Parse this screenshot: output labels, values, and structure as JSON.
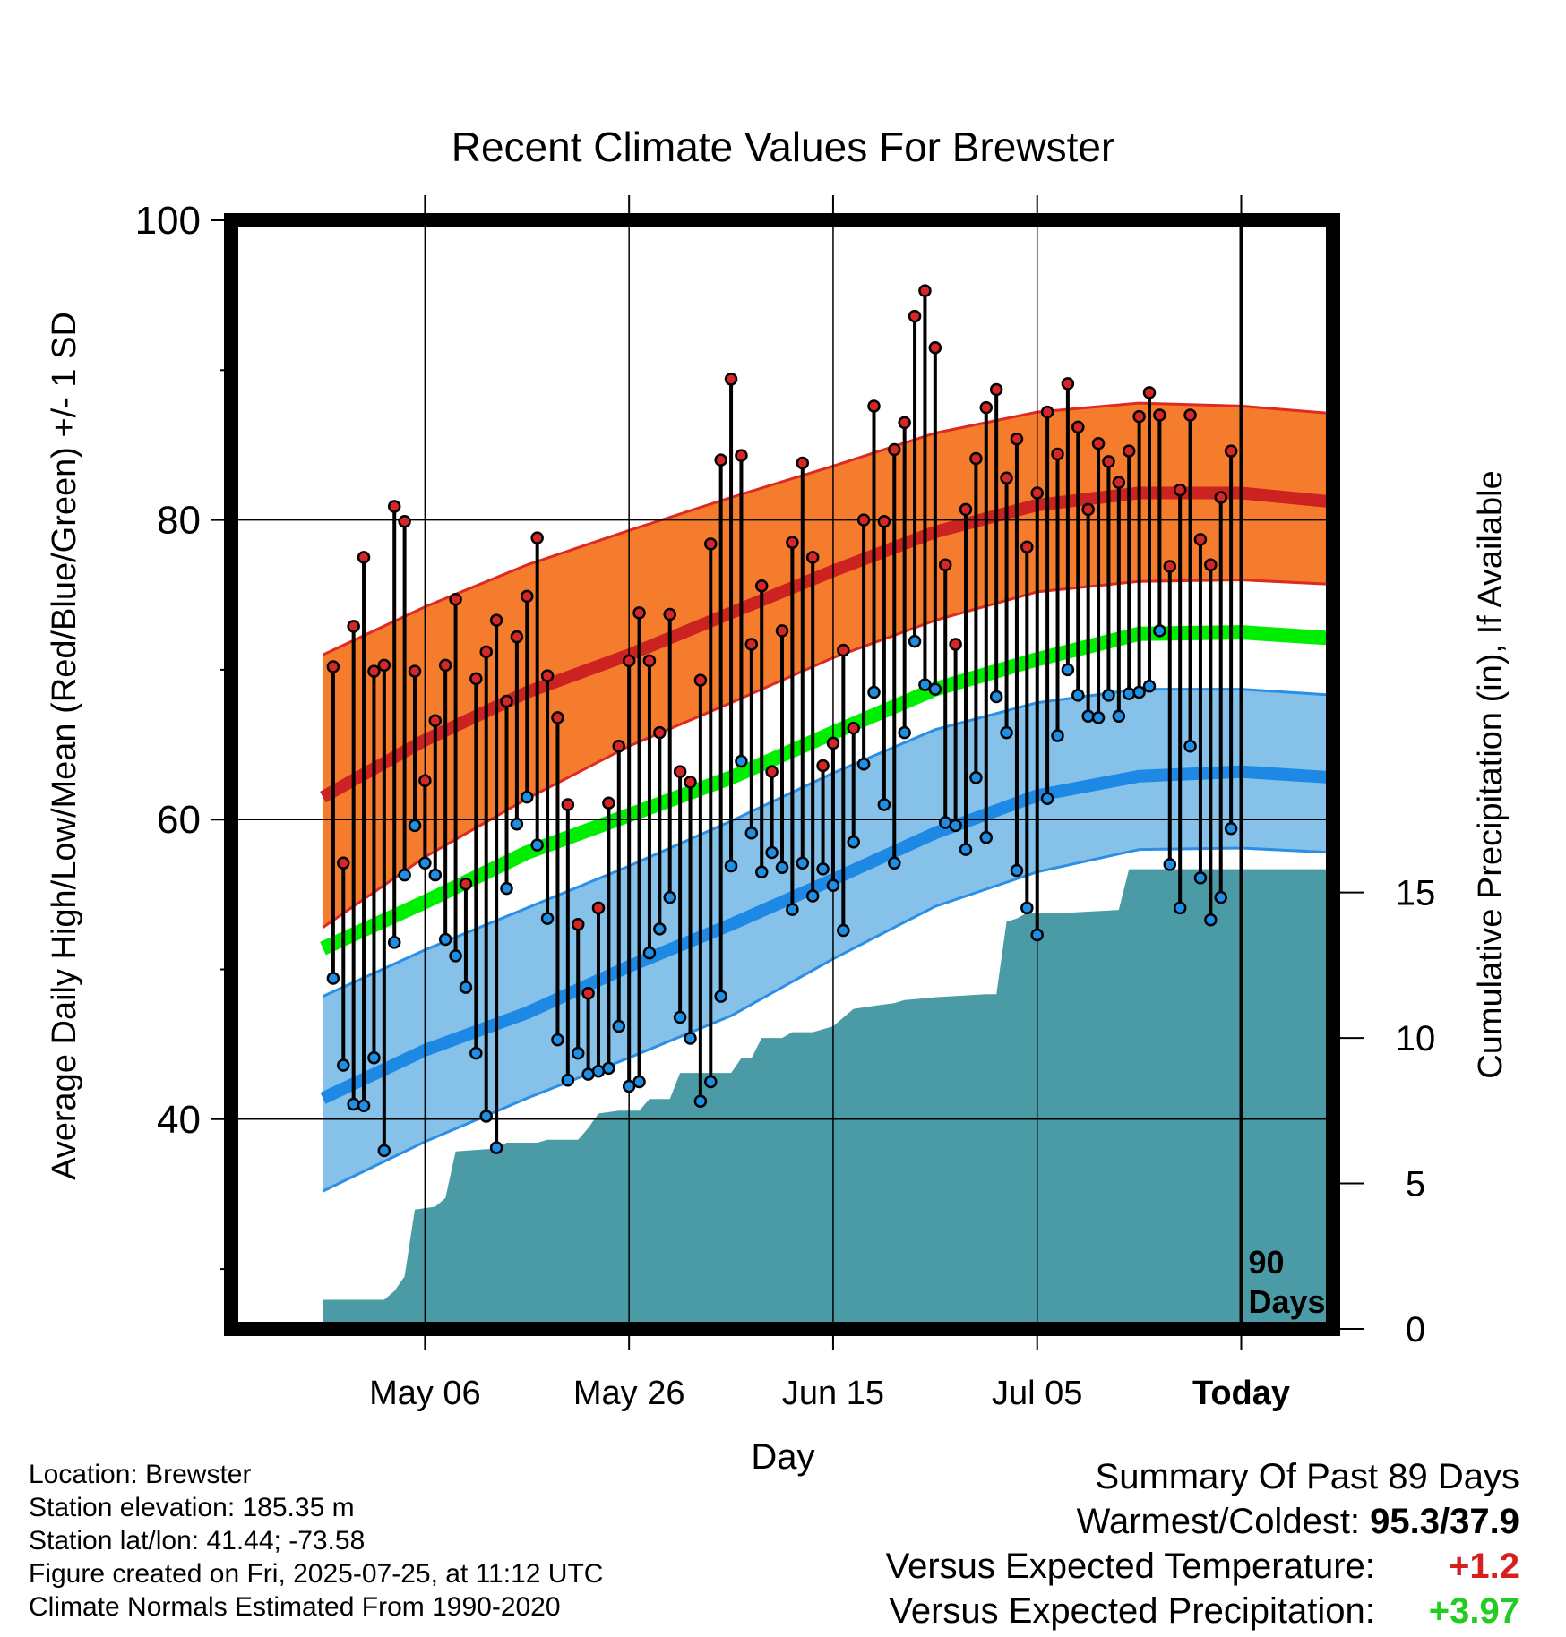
{
  "chart_data": {
    "type": "line",
    "title": "Recent Climate Values For Brewster",
    "xlabel": "Day",
    "ylabel": "Average Daily High/Low/Mean (Red/Blue/Green) +/- 1 SD",
    "y2label": "Cumulative Precipitation (in), If Available",
    "ylim": [
      26,
      100
    ],
    "y2lim": [
      0,
      38.1
    ],
    "xlim": [
      -99,
      9
    ],
    "x_ticks": [
      {
        "day": -80,
        "label": "May 06"
      },
      {
        "day": -60,
        "label": "May 26"
      },
      {
        "day": -40,
        "label": "Jun 15"
      },
      {
        "day": -20,
        "label": "Jul 05"
      },
      {
        "day": 0,
        "label": "Today"
      }
    ],
    "y_ticks": [
      40,
      60,
      80,
      100
    ],
    "y2_ticks": [
      0,
      5,
      10,
      15
    ],
    "grid": true,
    "period_label": "90\nDays",
    "colors": {
      "high": "#cc2222",
      "high_band": "#f47c2c",
      "mean": "#00ee00",
      "low": "#1e88e5",
      "low_band": "#85c1e9",
      "precip": "#4a9ba5"
    },
    "normals_days": [
      -90,
      -80,
      -70,
      -60,
      -50,
      -40,
      -30,
      -20,
      -10,
      0,
      9
    ],
    "normal_high": [
      61.5,
      65.3,
      68.5,
      71.0,
      73.8,
      76.6,
      79.2,
      81.0,
      81.8,
      81.8,
      81.2
    ],
    "high_sd_upper": [
      71.0,
      74.2,
      77.0,
      79.3,
      81.5,
      83.6,
      85.8,
      87.2,
      87.8,
      87.6,
      87.1
    ],
    "high_sd_lower": [
      52.8,
      57.5,
      61.4,
      64.9,
      67.8,
      70.8,
      73.3,
      75.2,
      75.9,
      76.0,
      75.7
    ],
    "normal_mean": [
      51.4,
      54.5,
      57.8,
      60.3,
      62.8,
      65.8,
      68.7,
      70.7,
      72.4,
      72.5,
      72.1
    ],
    "normal_low": [
      41.4,
      44.6,
      47.1,
      50.2,
      53.0,
      56.0,
      59.1,
      61.6,
      62.9,
      63.2,
      62.8
    ],
    "low_sd_upper": [
      48.2,
      51.3,
      54.1,
      56.9,
      59.9,
      63.1,
      66.0,
      67.8,
      68.7,
      68.7,
      68.3
    ],
    "low_sd_lower": [
      35.2,
      38.5,
      41.4,
      44.1,
      46.9,
      50.7,
      54.2,
      56.5,
      58.0,
      58.1,
      57.8
    ],
    "obs_start_day": -89,
    "observed_high": [
      70.2,
      57.1,
      72.9,
      77.5,
      69.9,
      70.3,
      80.9,
      79.9,
      69.9,
      62.6,
      66.6,
      70.3,
      74.7,
      55.7,
      69.4,
      71.2,
      73.3,
      67.9,
      72.2,
      74.9,
      78.8,
      69.6,
      66.8,
      61.0,
      53.0,
      48.4,
      54.1,
      61.1,
      64.9,
      70.6,
      73.8,
      70.6,
      65.8,
      73.7,
      63.2,
      62.5,
      69.3,
      78.4,
      84.0,
      89.4,
      84.3,
      71.7,
      75.6,
      63.2,
      72.6,
      78.5,
      83.8,
      77.5,
      63.6,
      65.1,
      71.3,
      66.1,
      80.0,
      87.6,
      79.9,
      84.7,
      86.5,
      93.6,
      95.3,
      91.5,
      77.0,
      71.7,
      80.7,
      84.1,
      87.5,
      88.7,
      82.8,
      85.4,
      78.2,
      81.8,
      87.2,
      84.4,
      89.1,
      86.2,
      80.7,
      85.1,
      83.9,
      82.5,
      84.6,
      86.9,
      88.5,
      87.0,
      76.9,
      82.0,
      87.0,
      78.7,
      77.0,
      81.5,
      84.6
    ],
    "observed_low": [
      49.4,
      43.6,
      41.0,
      40.9,
      44.1,
      37.9,
      51.8,
      56.3,
      59.6,
      57.1,
      56.3,
      52.0,
      50.9,
      48.8,
      44.4,
      40.2,
      38.1,
      55.4,
      59.7,
      61.5,
      58.3,
      53.4,
      45.3,
      42.6,
      44.4,
      43.0,
      43.2,
      43.4,
      46.2,
      42.2,
      42.5,
      51.1,
      52.7,
      54.8,
      46.8,
      45.4,
      41.2,
      42.5,
      48.2,
      56.9,
      63.9,
      59.1,
      56.5,
      57.8,
      56.8,
      54.0,
      57.1,
      54.9,
      56.7,
      55.6,
      52.6,
      58.5,
      63.7,
      68.5,
      61.0,
      57.1,
      65.8,
      71.9,
      69.0,
      68.7,
      59.8,
      59.6,
      58.0,
      62.8,
      58.8,
      68.2,
      65.8,
      56.6,
      54.1,
      52.3,
      61.4,
      65.6,
      70.0,
      68.3,
      66.9,
      66.8,
      68.3,
      66.9,
      68.4,
      68.5,
      68.9,
      72.6,
      57.0,
      54.1,
      64.9,
      56.1,
      53.3,
      54.8,
      59.4
    ],
    "precip_cumulative": [
      [
        -90,
        1.0
      ],
      [
        -84,
        1.0
      ],
      [
        -83,
        1.3
      ],
      [
        -82,
        1.8
      ],
      [
        -81,
        4.1
      ],
      [
        -79,
        4.2
      ],
      [
        -78,
        4.5
      ],
      [
        -77,
        6.1
      ],
      [
        -73,
        6.2
      ],
      [
        -72,
        6.4
      ],
      [
        -69,
        6.4
      ],
      [
        -68,
        6.5
      ],
      [
        -65,
        6.5
      ],
      [
        -64,
        6.9
      ],
      [
        -63,
        7.4
      ],
      [
        -61,
        7.5
      ],
      [
        -59,
        7.5
      ],
      [
        -58,
        7.9
      ],
      [
        -56,
        7.9
      ],
      [
        -55,
        8.8
      ],
      [
        -51,
        8.8
      ],
      [
        -50,
        8.8
      ],
      [
        -49,
        9.3
      ],
      [
        -48,
        9.3
      ],
      [
        -47,
        10.0
      ],
      [
        -45,
        10.0
      ],
      [
        -44,
        10.2
      ],
      [
        -42,
        10.2
      ],
      [
        -40,
        10.4
      ],
      [
        -39,
        10.7
      ],
      [
        -38,
        11.0
      ],
      [
        -36,
        11.1
      ],
      [
        -34,
        11.2
      ],
      [
        -33,
        11.3
      ],
      [
        -30,
        11.4
      ],
      [
        -25,
        11.5
      ],
      [
        -24,
        11.5
      ],
      [
        -23,
        14.0
      ],
      [
        -22,
        14.1
      ],
      [
        -21,
        14.3
      ],
      [
        -17,
        14.3
      ],
      [
        -12,
        14.4
      ],
      [
        -11,
        15.8
      ],
      [
        -10,
        15.8
      ],
      [
        -5,
        15.8
      ],
      [
        -4,
        15.8
      ],
      [
        0,
        15.8
      ],
      [
        9,
        15.8
      ]
    ]
  },
  "footer": {
    "location": "Location: Brewster",
    "elevation": "Station elevation: 185.35 m",
    "latlon": "Station lat/lon: 41.44; -73.58",
    "created": "Figure created on Fri, 2025-07-25, at 11:12 UTC",
    "normals": "Climate Normals Estimated From 1990-2020"
  },
  "summary": {
    "heading": "Summary Of Past 89 Days",
    "warmest_coldest_label": "Warmest/Coldest:",
    "warmest_coldest_value": "95.3/37.9",
    "temp_label": "Versus Expected Temperature:",
    "temp_value": "+1.2",
    "temp_color": "#d62020",
    "precip_label": "Versus Expected Precipitation:",
    "precip_value": "+3.97",
    "precip_color": "#22cc22"
  }
}
